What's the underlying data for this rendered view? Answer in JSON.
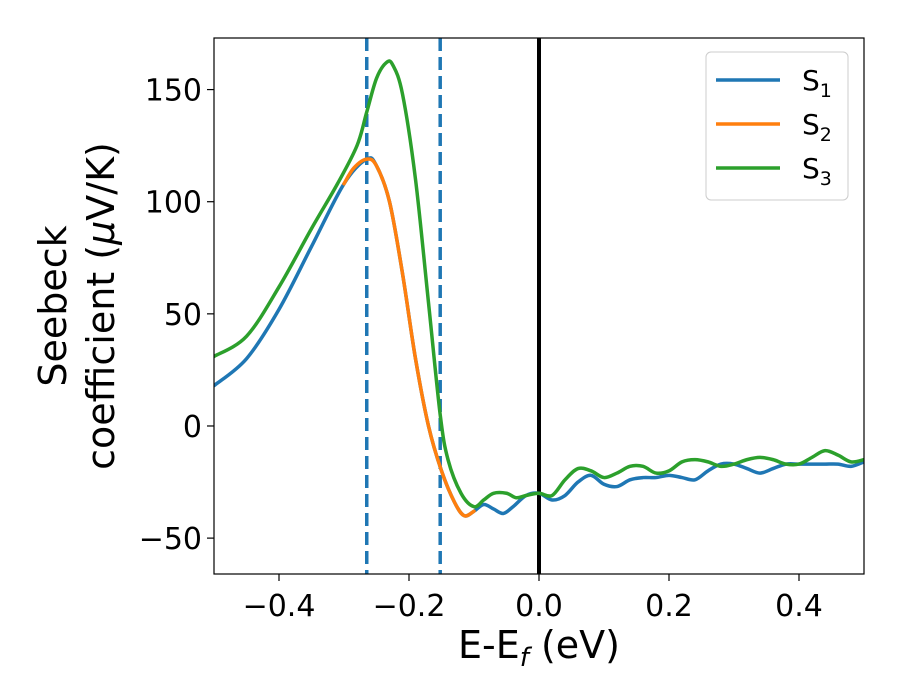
{
  "chart_data": {
    "type": "line",
    "xlabel": {
      "main": "E-E",
      "sub": "f",
      "unit": " (eV)"
    },
    "ylabel": {
      "line1": "Seebeck",
      "line2_prefix": "coefficient  (",
      "mu": "μ",
      "line2_suffix": "V/K)"
    },
    "xlim": [
      -0.5,
      0.5
    ],
    "ylim": [
      -66,
      173
    ],
    "xticks": [
      -0.4,
      -0.2,
      0.0,
      0.2,
      0.4
    ],
    "xtick_labels": [
      "−0.4",
      "−0.2",
      "0.0",
      "0.2",
      "0.4"
    ],
    "yticks": [
      -50,
      0,
      50,
      100,
      150
    ],
    "ytick_labels": [
      "−50",
      "0",
      "50",
      "100",
      "150"
    ],
    "grid": false,
    "legend_position": "top-right",
    "vlines": [
      {
        "x": -0.265,
        "style": "dashed",
        "color": "#1f77b4"
      },
      {
        "x": -0.152,
        "style": "dashed",
        "color": "#1f77b4"
      },
      {
        "x": 0.0,
        "style": "solid",
        "color": "#000000"
      }
    ],
    "series": [
      {
        "name": "S",
        "sub": "1",
        "color": "#1f77b4",
        "points": [
          [
            -0.5,
            18
          ],
          [
            -0.45,
            30
          ],
          [
            -0.4,
            52
          ],
          [
            -0.35,
            80
          ],
          [
            -0.3,
            108
          ],
          [
            -0.265,
            119
          ],
          [
            -0.25,
            116
          ],
          [
            -0.23,
            100
          ],
          [
            -0.21,
            68
          ],
          [
            -0.19,
            30
          ],
          [
            -0.17,
            0
          ],
          [
            -0.15,
            -20
          ],
          [
            -0.13,
            -34
          ],
          [
            -0.115,
            -40
          ],
          [
            -0.1,
            -38
          ],
          [
            -0.085,
            -35
          ],
          [
            -0.07,
            -37
          ],
          [
            -0.055,
            -39
          ],
          [
            -0.04,
            -36
          ],
          [
            -0.02,
            -31
          ],
          [
            0.0,
            -30
          ],
          [
            0.02,
            -33
          ],
          [
            0.04,
            -31
          ],
          [
            0.06,
            -25
          ],
          [
            0.08,
            -22
          ],
          [
            0.1,
            -26
          ],
          [
            0.12,
            -27
          ],
          [
            0.14,
            -24
          ],
          [
            0.16,
            -23
          ],
          [
            0.18,
            -23
          ],
          [
            0.2,
            -22
          ],
          [
            0.22,
            -23
          ],
          [
            0.24,
            -24
          ],
          [
            0.26,
            -20
          ],
          [
            0.28,
            -17
          ],
          [
            0.3,
            -17
          ],
          [
            0.32,
            -19
          ],
          [
            0.34,
            -21
          ],
          [
            0.36,
            -19
          ],
          [
            0.38,
            -17
          ],
          [
            0.4,
            -17
          ],
          [
            0.42,
            -17
          ],
          [
            0.44,
            -17
          ],
          [
            0.46,
            -17
          ],
          [
            0.48,
            -18
          ],
          [
            0.5,
            -16
          ]
        ]
      },
      {
        "name": "S",
        "sub": "2",
        "color": "#ff7f0e",
        "points": [
          [
            -0.3,
            108
          ],
          [
            -0.285,
            115
          ],
          [
            -0.265,
            119
          ],
          [
            -0.25,
            116
          ],
          [
            -0.23,
            100
          ],
          [
            -0.21,
            68
          ],
          [
            -0.19,
            30
          ],
          [
            -0.17,
            0
          ],
          [
            -0.15,
            -20
          ],
          [
            -0.13,
            -34
          ],
          [
            -0.115,
            -40
          ],
          [
            -0.1,
            -38
          ]
        ]
      },
      {
        "name": "S",
        "sub": "3",
        "color": "#2ca02c",
        "points": [
          [
            -0.5,
            31
          ],
          [
            -0.45,
            40
          ],
          [
            -0.4,
            62
          ],
          [
            -0.35,
            88
          ],
          [
            -0.31,
            108
          ],
          [
            -0.28,
            125
          ],
          [
            -0.265,
            140
          ],
          [
            -0.25,
            155
          ],
          [
            -0.235,
            162
          ],
          [
            -0.225,
            161
          ],
          [
            -0.21,
            148
          ],
          [
            -0.19,
            110
          ],
          [
            -0.17,
            55
          ],
          [
            -0.152,
            5
          ],
          [
            -0.14,
            -15
          ],
          [
            -0.12,
            -30
          ],
          [
            -0.1,
            -36
          ],
          [
            -0.085,
            -33
          ],
          [
            -0.07,
            -30
          ],
          [
            -0.05,
            -30
          ],
          [
            -0.035,
            -32
          ],
          [
            -0.02,
            -31
          ],
          [
            0.0,
            -30
          ],
          [
            0.02,
            -31
          ],
          [
            0.04,
            -24
          ],
          [
            0.06,
            -19
          ],
          [
            0.08,
            -20
          ],
          [
            0.1,
            -23
          ],
          [
            0.12,
            -21
          ],
          [
            0.14,
            -18
          ],
          [
            0.16,
            -18
          ],
          [
            0.18,
            -21
          ],
          [
            0.2,
            -20
          ],
          [
            0.22,
            -16
          ],
          [
            0.24,
            -15
          ],
          [
            0.26,
            -16
          ],
          [
            0.28,
            -18
          ],
          [
            0.3,
            -17
          ],
          [
            0.32,
            -15
          ],
          [
            0.34,
            -14
          ],
          [
            0.36,
            -15
          ],
          [
            0.38,
            -17
          ],
          [
            0.4,
            -17
          ],
          [
            0.42,
            -14
          ],
          [
            0.44,
            -11
          ],
          [
            0.46,
            -13
          ],
          [
            0.48,
            -16
          ],
          [
            0.5,
            -15
          ]
        ]
      }
    ]
  }
}
